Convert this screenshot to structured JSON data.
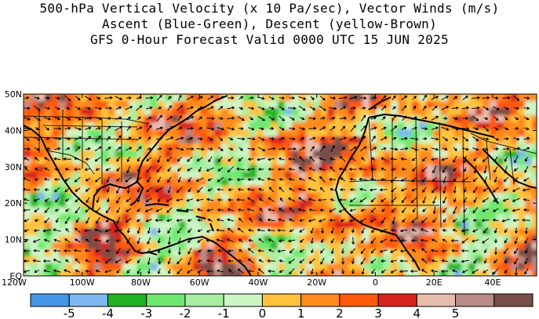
{
  "title": {
    "line1": "500-hPa Vertical Velocity (x 10 Pa/sec), Vector Winds (m/s)",
    "line2": "Ascent (Blue-Green), Descent (yellow-Brown)",
    "line3": "GFS 0-Hour Forecast Valid 0000 UTC 15 JUN 2025"
  },
  "map": {
    "lon_range": [
      -120,
      55
    ],
    "lat_range": [
      0,
      50
    ],
    "lat_ticks": [
      {
        "value": 50,
        "label": "50N"
      },
      {
        "value": 40,
        "label": "40N"
      },
      {
        "value": 30,
        "label": "30N"
      },
      {
        "value": 20,
        "label": "20N"
      },
      {
        "value": 10,
        "label": "10N"
      },
      {
        "value": 0,
        "label": "EQ"
      }
    ],
    "lon_ticks": [
      {
        "value": -120,
        "label": "120W"
      },
      {
        "value": -100,
        "label": "100W"
      },
      {
        "value": -80,
        "label": "80W"
      },
      {
        "value": -60,
        "label": "60W"
      },
      {
        "value": -40,
        "label": "40W"
      },
      {
        "value": -20,
        "label": "20W"
      },
      {
        "value": 0,
        "label": "0"
      },
      {
        "value": 20,
        "label": "20E"
      },
      {
        "value": 40,
        "label": "40E"
      }
    ]
  },
  "colorbar": {
    "colors": [
      "#4596e6",
      "#7db8ee",
      "#22b322",
      "#6fe86f",
      "#a7eea2",
      "#cdf5c4",
      "#ffc23d",
      "#ff8b1f",
      "#ff5a0a",
      "#d8221a",
      "#e7bcad",
      "#b98b85",
      "#7a4e48"
    ],
    "labels": [
      "-5",
      "-4",
      "-3",
      "-2",
      "-1",
      "0",
      "1",
      "2",
      "3",
      "4",
      "5"
    ]
  }
}
